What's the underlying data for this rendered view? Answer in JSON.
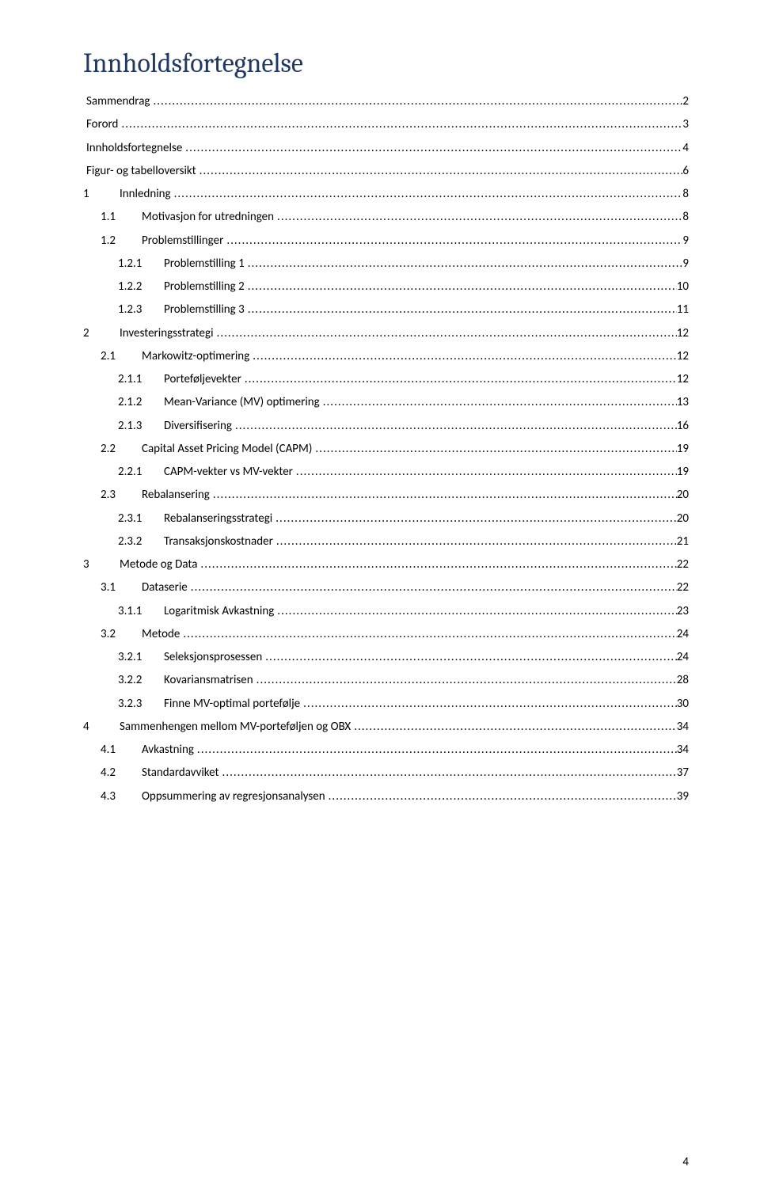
{
  "title": "Innholdsfortegnelse",
  "page_number": "4",
  "colors": {
    "title_color": "#1f3864",
    "text_color": "#000000",
    "background": "#ffffff"
  },
  "typography": {
    "title_font": "Cambria",
    "title_size_pt": 26,
    "body_font": "Calibri",
    "body_size_pt": 11
  },
  "toc": [
    {
      "level": 0,
      "num": "",
      "text": "Sammendrag",
      "page": "2"
    },
    {
      "level": 0,
      "num": "",
      "text": "Forord",
      "page": "3"
    },
    {
      "level": 0,
      "num": "",
      "text": "Innholdsfortegnelse",
      "page": "4"
    },
    {
      "level": 0,
      "num": "",
      "text": "Figur- og tabelloversikt",
      "page": "6"
    },
    {
      "level": 1,
      "num": "1",
      "text": "Innledning",
      "page": "8"
    },
    {
      "level": 2,
      "num": "1.1",
      "text": "Motivasjon for utredningen",
      "page": "8"
    },
    {
      "level": 2,
      "num": "1.2",
      "text": "Problemstillinger",
      "page": "9"
    },
    {
      "level": 3,
      "num": "1.2.1",
      "text": "Problemstilling 1",
      "page": "9"
    },
    {
      "level": 3,
      "num": "1.2.2",
      "text": "Problemstilling 2",
      "page": "10"
    },
    {
      "level": 3,
      "num": "1.2.3",
      "text": "Problemstilling 3",
      "page": "11"
    },
    {
      "level": 1,
      "num": "2",
      "text": "Investeringsstrategi",
      "page": "12"
    },
    {
      "level": 2,
      "num": "2.1",
      "text": "Markowitz-optimering",
      "page": "12"
    },
    {
      "level": 3,
      "num": "2.1.1",
      "text": "Porteføljevekter",
      "page": "12"
    },
    {
      "level": 3,
      "num": "2.1.2",
      "text": "Mean-Variance (MV) optimering",
      "page": "13"
    },
    {
      "level": 3,
      "num": "2.1.3",
      "text": "Diversifisering",
      "page": "16"
    },
    {
      "level": 2,
      "num": "2.2",
      "text": "Capital Asset Pricing Model (CAPM)",
      "page": "19"
    },
    {
      "level": 3,
      "num": "2.2.1",
      "text": "CAPM-vekter vs MV-vekter",
      "page": "19"
    },
    {
      "level": 2,
      "num": "2.3",
      "text": "Rebalansering",
      "page": "20"
    },
    {
      "level": 3,
      "num": "2.3.1",
      "text": "Rebalanseringsstrategi",
      "page": "20"
    },
    {
      "level": 3,
      "num": "2.3.2",
      "text": "Transaksjonskostnader",
      "page": "21"
    },
    {
      "level": 1,
      "num": "3",
      "text": "Metode og Data",
      "page": "22"
    },
    {
      "level": 2,
      "num": "3.1",
      "text": "Dataserie",
      "page": "22"
    },
    {
      "level": 3,
      "num": "3.1.1",
      "text": "Logaritmisk Avkastning",
      "page": "23"
    },
    {
      "level": 2,
      "num": "3.2",
      "text": "Metode",
      "page": "24"
    },
    {
      "level": 3,
      "num": "3.2.1",
      "text": "Seleksjonsprosessen",
      "page": "24"
    },
    {
      "level": 3,
      "num": "3.2.2",
      "text": "Kovariansmatrisen",
      "page": "28"
    },
    {
      "level": 3,
      "num": "3.2.3",
      "text": "Finne MV-optimal portefølje",
      "page": "30"
    },
    {
      "level": 1,
      "num": "4",
      "text": "Sammenhengen mellom MV-porteføljen og OBX",
      "page": "34"
    },
    {
      "level": 2,
      "num": "4.1",
      "text": "Avkastning",
      "page": "34"
    },
    {
      "level": 2,
      "num": "4.2",
      "text": "Standardavviket",
      "page": "37"
    },
    {
      "level": 2,
      "num": "4.3",
      "text": "Oppsummering av regresjonsanalysen",
      "page": "39"
    }
  ]
}
